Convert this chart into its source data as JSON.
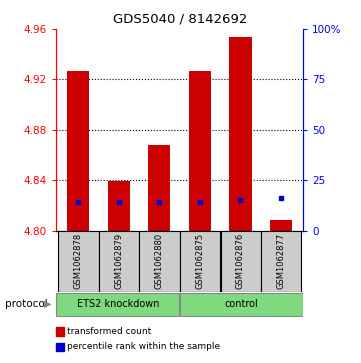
{
  "title": "GDS5040 / 8142692",
  "samples": [
    "GSM1062878",
    "GSM1062879",
    "GSM1062880",
    "GSM1062875",
    "GSM1062876",
    "GSM1062877"
  ],
  "red_values": [
    4.927,
    4.839,
    4.868,
    4.927,
    4.954,
    4.808
  ],
  "blue_percentiles": [
    14,
    14,
    14,
    14,
    15,
    16
  ],
  "ylim": [
    4.8,
    4.96
  ],
  "yticks_left": [
    4.8,
    4.84,
    4.88,
    4.92,
    4.96
  ],
  "yticks_right": [
    0,
    25,
    50,
    75,
    100
  ],
  "bar_base": 4.8,
  "bar_color": "#CC0000",
  "blue_color": "#0000CC",
  "sample_box_color": "#CCCCCC",
  "green_color": "#7FD97F",
  "ets2_label": "ETS2 knockdown",
  "control_label": "control",
  "protocol_label": "protocol",
  "legend_red_label": "transformed count",
  "legend_blue_label": "percentile rank within the sample"
}
